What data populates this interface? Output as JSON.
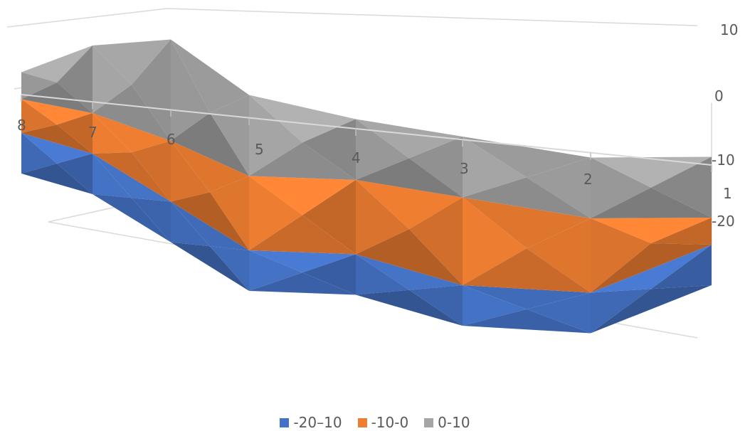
{
  "chart_data": {
    "type": "surface",
    "title": "",
    "xlabel": "",
    "ylabel": "",
    "x_ticks": [
      "8",
      "7",
      "6",
      "5",
      "4",
      "3",
      "2",
      "1"
    ],
    "z_ticks": [
      "10",
      "0",
      "-10",
      "-20"
    ],
    "zlim": [
      -20,
      10
    ],
    "series": [
      {
        "name": "-20--10",
        "color": "#4472C4",
        "values": [
          -6,
          -8,
          -13,
          -16,
          -15,
          -18,
          -17,
          -12
        ]
      },
      {
        "name": "-10-0",
        "color": "#ED7D31",
        "values": [
          -1,
          -2,
          -4,
          -5,
          -4,
          -5,
          -6,
          -8
        ]
      },
      {
        "name": "0-10",
        "color": "#A5A5A5",
        "values": [
          3,
          8,
          11,
          7,
          5,
          4,
          3,
          1
        ]
      }
    ],
    "legend": {
      "position": "bottom",
      "items": [
        {
          "label": "-20–10",
          "color": "#4472C4"
        },
        {
          "label": "-10-0",
          "color": "#ED7D31"
        },
        {
          "label": "0-10",
          "color": "#A5A5A5"
        }
      ]
    }
  }
}
